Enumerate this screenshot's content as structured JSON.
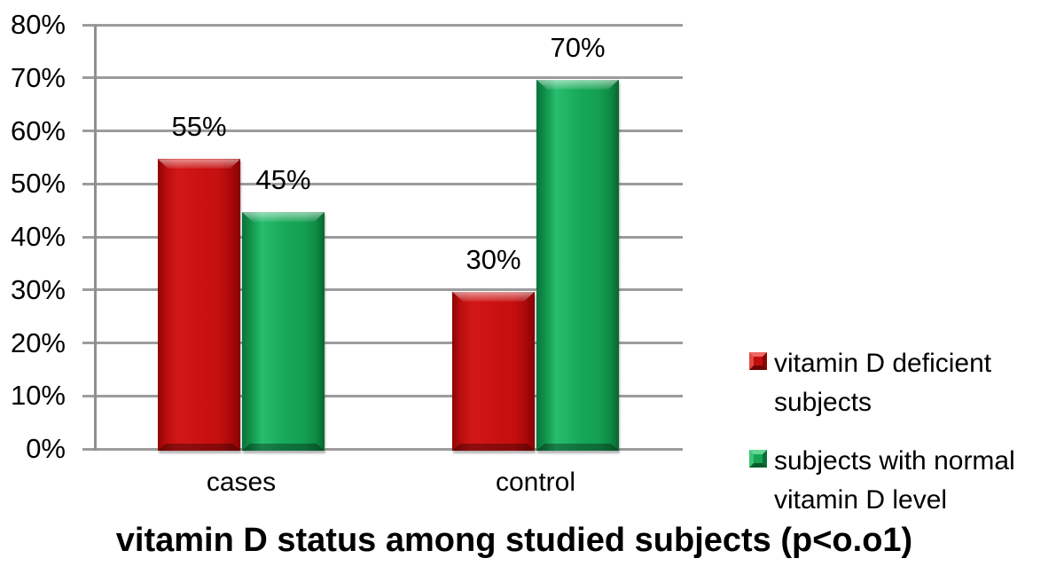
{
  "chart_data": {
    "type": "bar",
    "title": "vitamin D status among studied subjects (p<o.o1)",
    "categories": [
      "cases",
      "control"
    ],
    "series": [
      {
        "name": "vitamin D deficient subjects",
        "color": "#C41111",
        "values": [
          55,
          30
        ],
        "labels": [
          "55%",
          "30%"
        ]
      },
      {
        "name": "subjects with normal vitamin D level",
        "color": "#16A556",
        "values": [
          45,
          70
        ],
        "labels": [
          "45%",
          "70%"
        ]
      }
    ],
    "xlabel": "",
    "ylabel": "",
    "ylim": [
      0,
      80
    ],
    "yticks": [
      "0%",
      "10%",
      "20%",
      "30%",
      "40%",
      "50%",
      "60%",
      "70%",
      "80%"
    ],
    "grid": true,
    "legend_position": "right"
  },
  "colors": {
    "gridline": "#9C9C9C",
    "axis": "#8F8F8F",
    "text": "#000000",
    "background": "#FFFFFF"
  }
}
